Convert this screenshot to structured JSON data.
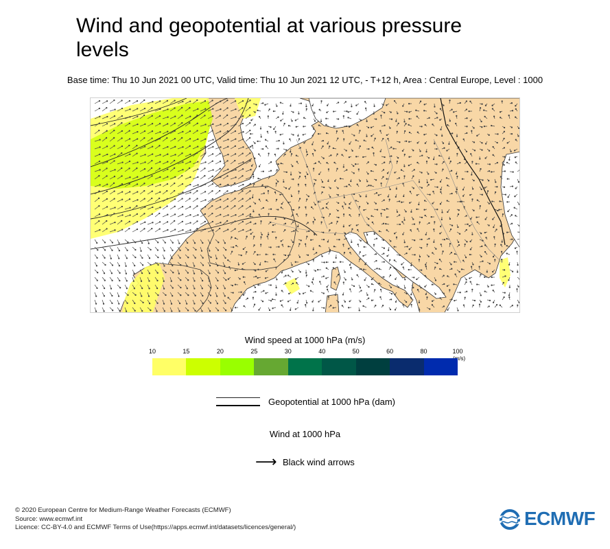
{
  "title": "Wind and geopotential at various pressure levels",
  "subtitle": "Base time: Thu 10 Jun 2021 00 UTC, Valid time: Thu 10 Jun 2021 12 UTC, - T+12 h, Area : Central Europe, Level : 1000",
  "map": {
    "area": "Central Europe",
    "colors": {
      "sea": "#ffffff",
      "land": "#f8d7a6",
      "wind_10_15": "#ffff66",
      "wind_15_20": "#ccff00",
      "border": "#888888",
      "coast": "#333333"
    }
  },
  "colorbar": {
    "title": "Wind speed at 1000 hPa (m/s)",
    "ticks": [
      "10",
      "15",
      "20",
      "25",
      "30",
      "40",
      "50",
      "60",
      "80",
      "100"
    ],
    "unit": "(m/s)",
    "colors": [
      "#ffff66",
      "#ccff00",
      "#99ff00",
      "#66a832",
      "#00734a",
      "#005747",
      "#003f3f",
      "#0a2c6e",
      "#002bae"
    ]
  },
  "legend": {
    "geopotential_label": "Geopotential at 1000 hPa (dam)",
    "wind_heading": "Wind at 1000 hPa",
    "arrow_symbol": "⟶",
    "arrow_label": "Black wind arrows"
  },
  "footer": {
    "copyright": "© 2020 European Centre for Medium-Range Weather Forecasts (ECMWF)",
    "source": "Source: www.ecmwf.int",
    "licence": "Licence: CC-BY-4.0 and ECMWF Terms of Use(https://apps.ecmwf.int/datasets/licences/general/)"
  },
  "logo": {
    "text": "ECMWF",
    "icon": "ecmwf-logo-icon",
    "color": "#1f6db3"
  }
}
